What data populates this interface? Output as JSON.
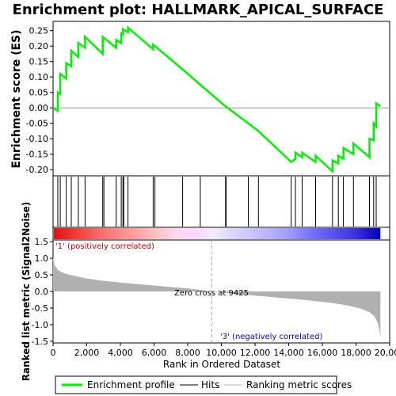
{
  "chart_data": {
    "title": "Enrichment plot: HALLMARK_APICAL_SURFACE",
    "type": "line",
    "enrichment_panel": {
      "ylabel": "Enrichment score (ES)",
      "ylim": [
        -0.22,
        0.28
      ],
      "yticks": [
        0.25,
        0.2,
        0.15,
        0.1,
        0.05,
        0.0,
        -0.05,
        -0.1,
        -0.15,
        -0.2
      ],
      "ytick_labels": [
        "0.25",
        "0.20",
        "0.15",
        "0.10",
        "0.05",
        "0.00",
        "-0.05",
        "-0.10",
        "-0.15",
        "-0.20"
      ],
      "series": [
        {
          "name": "Enrichment profile",
          "color": "#00ee00",
          "x": [
            0,
            280,
            280,
            430,
            430,
            780,
            780,
            1080,
            1080,
            1500,
            1500,
            1900,
            1900,
            2950,
            2950,
            3750,
            3750,
            4050,
            4050,
            4150,
            4150,
            4450,
            4450,
            5950,
            5950,
            7700,
            7700,
            8750,
            8750,
            10250,
            10250,
            11600,
            11600,
            12200,
            12200,
            14150,
            14150,
            14400,
            14400,
            14800,
            14800,
            15600,
            15600,
            16600,
            16600,
            16950,
            16950,
            17250,
            17250,
            17850,
            17850,
            18800,
            18800,
            19050,
            19050,
            19200,
            19200,
            19450
          ],
          "y": [
            0.0,
            -0.01,
            0.05,
            0.045,
            0.11,
            0.095,
            0.145,
            0.135,
            0.185,
            0.165,
            0.21,
            0.195,
            0.23,
            0.175,
            0.23,
            0.195,
            0.22,
            0.21,
            0.245,
            0.235,
            0.255,
            0.245,
            0.26,
            0.19,
            0.205,
            0.125,
            0.125,
            0.075,
            0.075,
            0.005,
            0.005,
            -0.05,
            -0.05,
            -0.075,
            -0.075,
            -0.175,
            -0.175,
            -0.165,
            -0.145,
            -0.16,
            -0.145,
            -0.175,
            -0.155,
            -0.205,
            -0.17,
            -0.18,
            -0.155,
            -0.165,
            -0.13,
            -0.15,
            -0.115,
            -0.16,
            -0.1,
            -0.105,
            -0.05,
            -0.06,
            0.015,
            0.005
          ]
        }
      ]
    },
    "hits_panel": {
      "series_name": "Hits",
      "hit_positions": [
        280,
        430,
        780,
        1080,
        1500,
        1900,
        2950,
        3020,
        3750,
        4050,
        4150,
        4200,
        4450,
        5950,
        6050,
        7700,
        8750,
        10250,
        10280,
        11600,
        12200,
        14150,
        14400,
        14800,
        15600,
        16600,
        16950,
        17250,
        17850,
        18800,
        19050,
        19200
      ]
    },
    "metric_panel": {
      "ylabel": "Ranked list metric (Signal2Noise)",
      "series_name": "Ranking metric scores",
      "ylim": [
        -1.55,
        1.55
      ],
      "yticks": [
        1.5,
        1.0,
        0.5,
        0.0,
        -0.5,
        -1.0,
        -1.5
      ],
      "ytick_labels": [
        "1.5",
        "1.0",
        "0.5",
        "0.0",
        "-0.5",
        "-1.0",
        "-1.5"
      ],
      "fill_color": "#b0b0b0",
      "x": [
        0,
        100,
        300,
        600,
        1000,
        2000,
        3000,
        4000,
        6000,
        8000,
        9425,
        11000,
        13000,
        15000,
        16500,
        17500,
        18300,
        18800,
        19100,
        19300,
        19400,
        19450
      ],
      "y": [
        1.05,
        0.78,
        0.64,
        0.56,
        0.5,
        0.39,
        0.32,
        0.27,
        0.18,
        0.09,
        0.0,
        -0.08,
        -0.17,
        -0.26,
        -0.34,
        -0.42,
        -0.52,
        -0.62,
        -0.75,
        -0.95,
        -1.2,
        -1.42
      ],
      "zero_cross_label": "Zero cross at 9425",
      "zero_cross_x": 9425,
      "positive_label": "'1' (positively correlated)",
      "negative_label": "'3' (negatively correlated)"
    },
    "xaxis": {
      "xlabel": "Rank in Ordered Dataset",
      "xlim": [
        0,
        20000
      ],
      "xmax_data": 19450,
      "xticks": [
        0,
        2000,
        4000,
        6000,
        8000,
        10000,
        12000,
        14000,
        16000,
        18000,
        20000
      ],
      "xtick_labels": [
        "0",
        "2,000",
        "4,000",
        "6,000",
        "8,000",
        "10,000",
        "12,000",
        "14,000",
        "16,000",
        "18,000",
        "20,000"
      ]
    },
    "colorbar": {
      "stops": [
        {
          "x": 0,
          "color": "#e01010"
        },
        {
          "x": 1200,
          "color": "#f03838"
        },
        {
          "x": 2800,
          "color": "#ff6c6c"
        },
        {
          "x": 4400,
          "color": "#ff9696"
        },
        {
          "x": 6000,
          "color": "#ffbebe"
        },
        {
          "x": 7300,
          "color": "#ffd8ee"
        },
        {
          "x": 8600,
          "color": "#f8d8ff"
        },
        {
          "x": 9425,
          "color": "#f4eaff"
        },
        {
          "x": 10300,
          "color": "#e0dcff"
        },
        {
          "x": 11500,
          "color": "#cdc8ff"
        },
        {
          "x": 13000,
          "color": "#b4b0ff"
        },
        {
          "x": 14200,
          "color": "#9a96ff"
        },
        {
          "x": 15200,
          "color": "#7a74ff"
        },
        {
          "x": 16700,
          "color": "#5850f0"
        },
        {
          "x": 18000,
          "color": "#3a30e0"
        },
        {
          "x": 18900,
          "color": "#1a10c8"
        },
        {
          "x": 19450,
          "color": "#0000b8"
        }
      ]
    },
    "legend": {
      "position": "bottom",
      "items": [
        {
          "label": "Enrichment profile",
          "color": "#00ee00"
        },
        {
          "label": "Hits",
          "color": "#000000"
        },
        {
          "label": "Ranking metric scores",
          "color": "#b0b0b0"
        }
      ]
    }
  }
}
